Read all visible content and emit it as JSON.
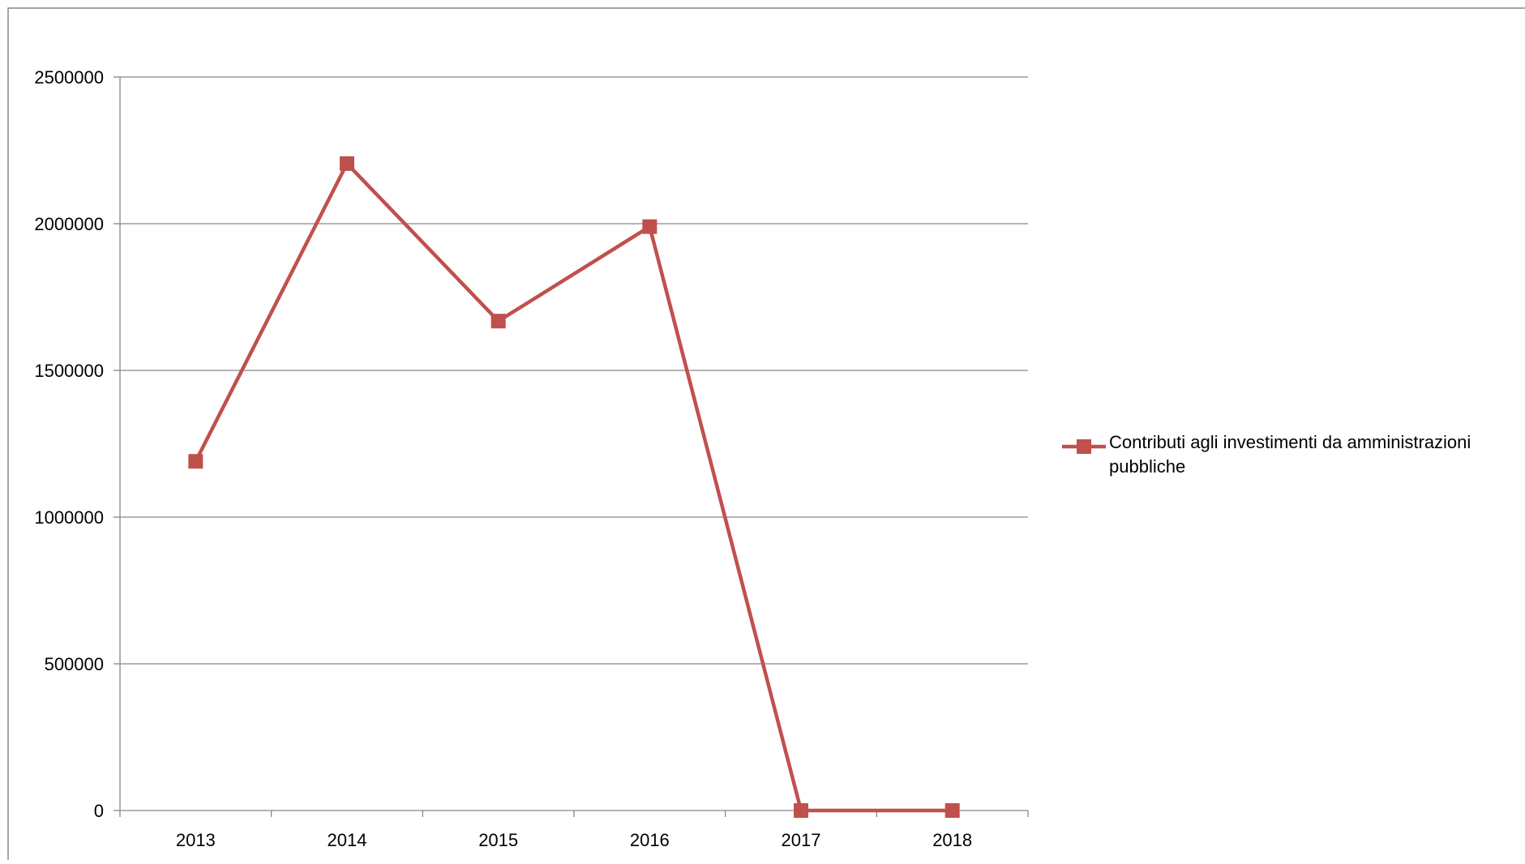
{
  "chart_data": {
    "type": "line",
    "title": "",
    "xlabel": "",
    "ylabel": "",
    "categories": [
      "2013",
      "2014",
      "2015",
      "2016",
      "2017",
      "2018"
    ],
    "series": [
      {
        "name": "Contributi agli investimenti da amministrazioni pubbliche",
        "values": [
          1190000,
          2205000,
          1668000,
          1990000,
          0,
          0
        ],
        "color": "#c0504d",
        "marker": "square"
      }
    ],
    "ylim": [
      0,
      2500000
    ],
    "yticks": [
      "0",
      "500000",
      "1000000",
      "1500000",
      "2000000",
      "2500000"
    ],
    "grid": true,
    "legend_position": "right"
  }
}
